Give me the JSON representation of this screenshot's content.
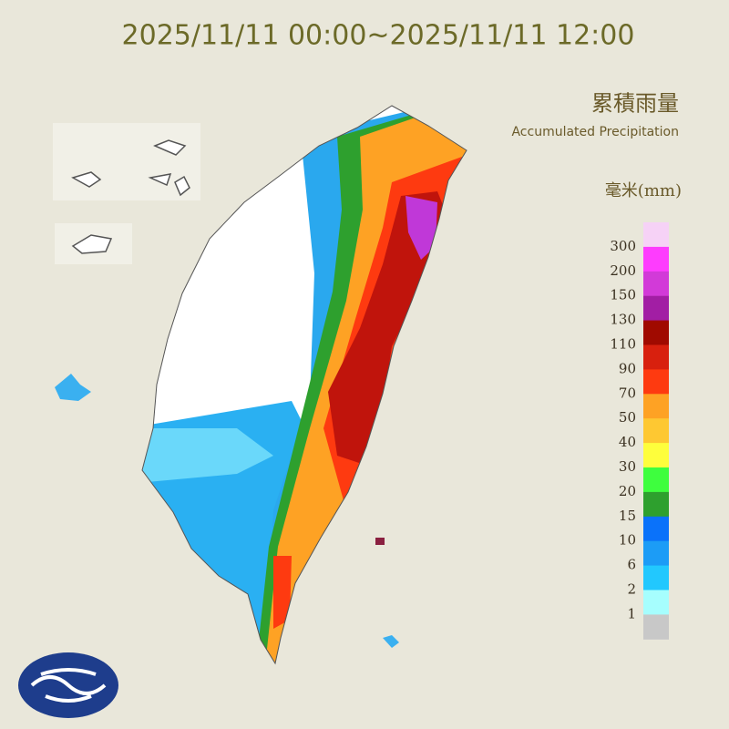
{
  "title": "2025/11/11 00:00~2025/11/11 12:00",
  "legend": {
    "title_zh": "累積雨量",
    "title_en": "Accumulated Precipitation",
    "unit": "毫米(mm)",
    "labels": [
      "300",
      "200",
      "150",
      "130",
      "110",
      "90",
      "70",
      "50",
      "40",
      "30",
      "20",
      "15",
      "10",
      "6",
      "2",
      "1"
    ],
    "colors": [
      "#f6d2f6",
      "#fe3cfe",
      "#d23ad8",
      "#a21ea4",
      "#a00a00",
      "#d8200e",
      "#fe3a10",
      "#fea224",
      "#fec832",
      "#fefe3c",
      "#3efe3e",
      "#2ea02e",
      "#0a72fa",
      "#1c9cf6",
      "#22c8fe",
      "#a6fefe",
      "#c8c8c8"
    ]
  }
}
